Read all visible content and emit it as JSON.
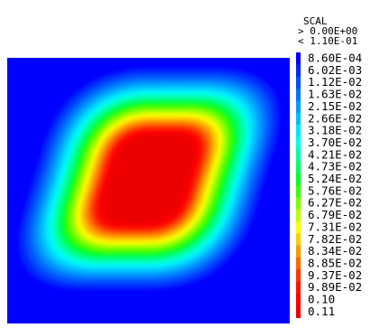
{
  "chart_data": {
    "type": "heatmap",
    "title": "SCAL",
    "range_lines": [
      "> 0.00E+00",
      "< 1.10E-01"
    ],
    "vmin": 0.0,
    "vmax": 0.11,
    "field_shape": "sheared-square",
    "legend_placement": "right",
    "legend_levels": [
      {
        "label": "8.60E-04",
        "value": 0.00086,
        "color": "#0000ff"
      },
      {
        "label": "6.02E-03",
        "value": 0.00602,
        "color": "#0026ff"
      },
      {
        "label": "1.12E-02",
        "value": 0.0112,
        "color": "#004dff"
      },
      {
        "label": "1.63E-02",
        "value": 0.0163,
        "color": "#0073ff"
      },
      {
        "label": "2.15E-02",
        "value": 0.0215,
        "color": "#0099ff"
      },
      {
        "label": "2.66E-02",
        "value": 0.0266,
        "color": "#00bfff"
      },
      {
        "label": "3.18E-02",
        "value": 0.0318,
        "color": "#00e6ff"
      },
      {
        "label": "3.70E-02",
        "value": 0.037,
        "color": "#00ffe6"
      },
      {
        "label": "4.21E-02",
        "value": 0.0421,
        "color": "#00ffaa"
      },
      {
        "label": "4.73E-02",
        "value": 0.0473,
        "color": "#00ff66"
      },
      {
        "label": "5.24E-02",
        "value": 0.0524,
        "color": "#00ff22"
      },
      {
        "label": "5.76E-02",
        "value": 0.0576,
        "color": "#33ff00"
      },
      {
        "label": "6.27E-02",
        "value": 0.0627,
        "color": "#77ff00"
      },
      {
        "label": "6.79E-02",
        "value": 0.0679,
        "color": "#bbff00"
      },
      {
        "label": "7.31E-02",
        "value": 0.0731,
        "color": "#ffff00"
      },
      {
        "label": "7.82E-02",
        "value": 0.0782,
        "color": "#ffcc00"
      },
      {
        "label": "8.34E-02",
        "value": 0.0834,
        "color": "#ff9900"
      },
      {
        "label": "8.85E-02",
        "value": 0.0885,
        "color": "#ff6600"
      },
      {
        "label": "9.37E-02",
        "value": 0.0937,
        "color": "#ff3300"
      },
      {
        "label": "9.89E-02",
        "value": 0.0989,
        "color": "#ff1100"
      },
      {
        "label": "0.10",
        "value": 0.1,
        "color": "#ff0000"
      },
      {
        "label": "0.11",
        "value": 0.11,
        "color": "#ee0000"
      }
    ]
  }
}
